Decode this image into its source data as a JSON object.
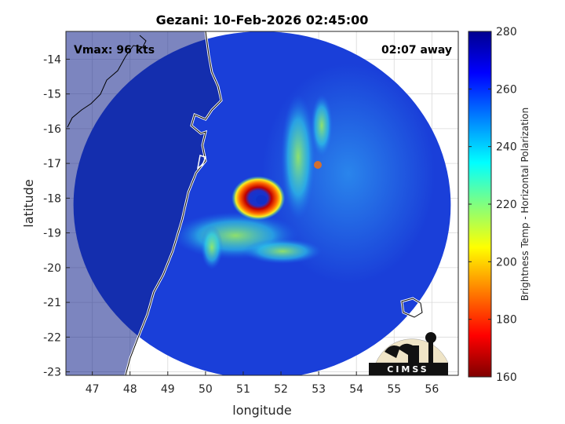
{
  "chart_data": {
    "type": "heatmap",
    "title": "Gezani: 10-Feb-2026 02:45:00",
    "xlabel": "longitude",
    "ylabel": "latitude",
    "xlim": [
      46.3,
      56.7
    ],
    "ylim": [
      -23.1,
      -13.2
    ],
    "xticks": [
      47,
      48,
      49,
      50,
      51,
      52,
      53,
      54,
      55,
      56
    ],
    "yticks": [
      -14,
      -15,
      -16,
      -17,
      -18,
      -19,
      -20,
      -21,
      -22,
      -23
    ],
    "grid": true,
    "annotations": {
      "left": "Vmax: 96 kts",
      "right": "02:07 away"
    },
    "colorbar": {
      "label": "Brightness Temp - Horizontal Polarization",
      "min": 160,
      "max": 280,
      "ticks": [
        160,
        180,
        200,
        220,
        240,
        260,
        280
      ],
      "colormap": [
        "#7f0000",
        "#ff0000",
        "#ff8000",
        "#ffff00",
        "#80ff80",
        "#00ffff",
        "#0080ff",
        "#0000ff",
        "#00008f"
      ]
    },
    "storm_center": {
      "lon": 51.4,
      "lat": -18.0
    },
    "eyewall_min_temp": 165,
    "swath_center": {
      "lon": 51.5,
      "lat": -18.2
    },
    "swath_radius_deg": 5.0
  },
  "logo": {
    "text": "CIMSS"
  },
  "colors": {
    "background_scan": "#1a3fd9",
    "land_dark": "#10208a",
    "coastline": "#ffffff"
  }
}
